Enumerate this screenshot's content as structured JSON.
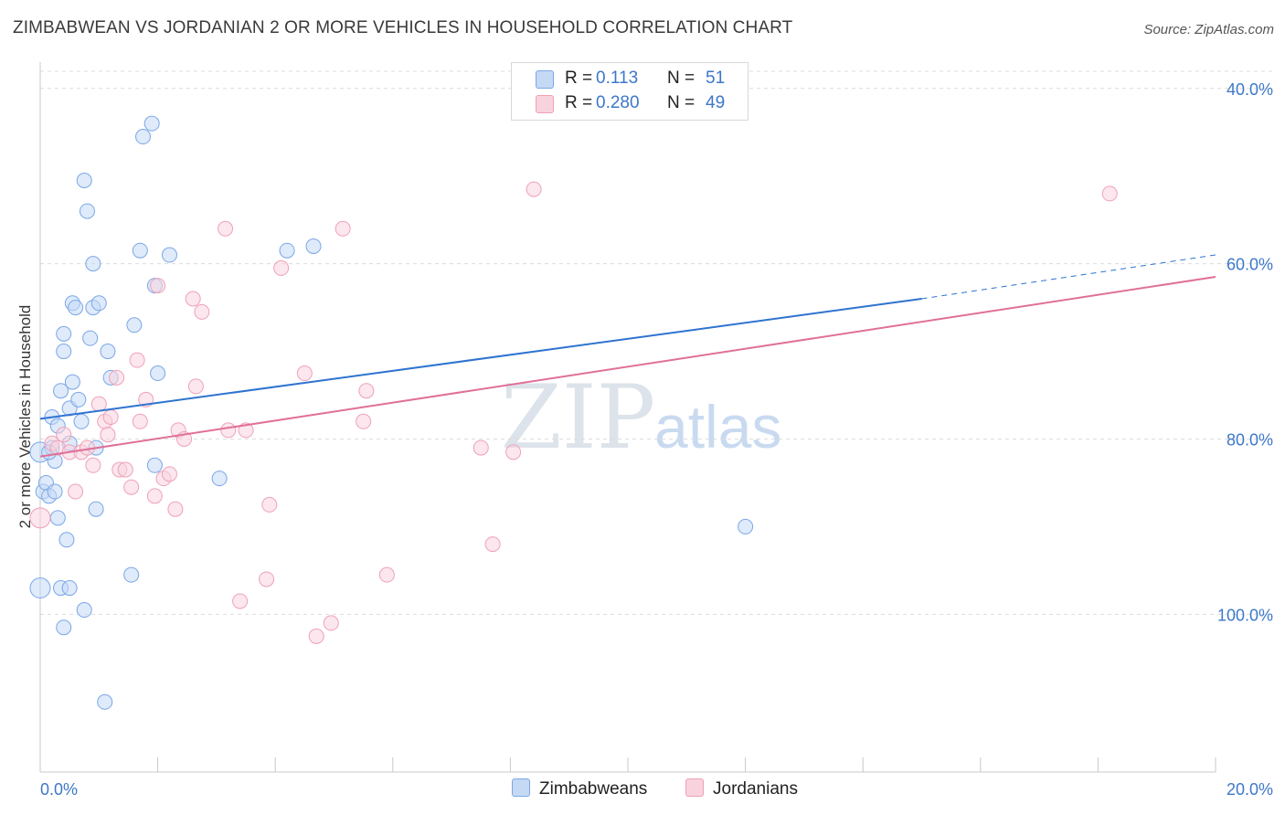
{
  "header": {
    "title": "ZIMBABWEAN VS JORDANIAN 2 OR MORE VEHICLES IN HOUSEHOLD CORRELATION CHART",
    "source": "Source: ZipAtlas.com"
  },
  "watermark": {
    "zip": "ZIP",
    "atlas": "atlas"
  },
  "legend": {
    "r_label": "R =",
    "n_label": "N =",
    "rows": [
      {
        "r": "0.113",
        "n": "51",
        "color": "#7aa7e6"
      },
      {
        "r": "0.280",
        "n": "49",
        "color": "#f0a0b8"
      }
    ]
  },
  "bottom_legend": {
    "series1": "Zimbabweans",
    "series2": "Jordanians"
  },
  "axis_text": {
    "ylabel": "2 or more Vehicles in Household",
    "x_left": "0.0%",
    "x_right": "20.0%",
    "y_ticks": [
      "100.0%",
      "80.0%",
      "60.0%",
      "40.0%"
    ]
  },
  "colors": {
    "blue_fill": "#c5d9f5",
    "blue_stroke": "#7aa7e6",
    "blue_line": "#2f73d0",
    "pink_fill": "#f8d3de",
    "pink_stroke": "#f0a0b8",
    "pink_line": "#e07097",
    "tick_text": "#3d77c9"
  },
  "chart_data": {
    "type": "scatter",
    "title": "ZIMBABWEAN VS JORDANIAN 2 OR MORE VEHICLES IN HOUSEHOLD CORRELATION CHART",
    "xlabel": "",
    "ylabel": "2 or more Vehicles in Household",
    "xlim": [
      0,
      20
    ],
    "ylim": [
      22,
      103
    ],
    "y_ticks": [
      40,
      60,
      80,
      100
    ],
    "grid": "horizontal dashed",
    "legend_position": "top-center",
    "series": [
      {
        "name": "Zimbabweans",
        "r": 0.113,
        "n": 51,
        "trend": {
          "x0": 0,
          "y0": 62.3,
          "x1": 15,
          "y1": 76.0,
          "dashed_to_x": 20,
          "dashed_y": 81.0
        },
        "points": [
          [
            0.0,
            43.0
          ],
          [
            0.0,
            58.5
          ],
          [
            0.05,
            54.0
          ],
          [
            0.1,
            55.0
          ],
          [
            0.15,
            53.5
          ],
          [
            0.2,
            59.0
          ],
          [
            0.2,
            62.5
          ],
          [
            0.25,
            57.5
          ],
          [
            0.3,
            61.5
          ],
          [
            0.3,
            51.0
          ],
          [
            0.35,
            65.5
          ],
          [
            0.35,
            43.0
          ],
          [
            0.4,
            72.0
          ],
          [
            0.4,
            70.0
          ],
          [
            0.4,
            38.5
          ],
          [
            0.45,
            48.5
          ],
          [
            0.5,
            43.0
          ],
          [
            0.5,
            63.5
          ],
          [
            0.55,
            75.5
          ],
          [
            0.55,
            66.5
          ],
          [
            0.6,
            75.0
          ],
          [
            0.65,
            64.5
          ],
          [
            0.7,
            62.0
          ],
          [
            0.75,
            89.5
          ],
          [
            0.75,
            40.5
          ],
          [
            0.8,
            86.0
          ],
          [
            0.85,
            71.5
          ],
          [
            0.9,
            80.0
          ],
          [
            0.9,
            75.0
          ],
          [
            0.95,
            52.0
          ],
          [
            0.95,
            59.0
          ],
          [
            1.0,
            75.5
          ],
          [
            1.1,
            30.0
          ],
          [
            1.15,
            70.0
          ],
          [
            1.2,
            67.0
          ],
          [
            1.55,
            44.5
          ],
          [
            1.6,
            73.0
          ],
          [
            1.7,
            81.5
          ],
          [
            1.75,
            94.5
          ],
          [
            1.9,
            96.0
          ],
          [
            1.95,
            57.0
          ],
          [
            1.95,
            77.5
          ],
          [
            2.0,
            67.5
          ],
          [
            2.2,
            81.0
          ],
          [
            3.05,
            55.5
          ],
          [
            4.2,
            81.5
          ],
          [
            4.65,
            82.0
          ],
          [
            12.0,
            50.0
          ],
          [
            0.15,
            58.5
          ],
          [
            0.25,
            54.0
          ],
          [
            0.5,
            59.5
          ]
        ]
      },
      {
        "name": "Jordanians",
        "r": 0.28,
        "n": 49,
        "trend": {
          "x0": 0,
          "y0": 58.0,
          "x1": 20,
          "y1": 78.5
        },
        "points": [
          [
            0.0,
            51.0
          ],
          [
            0.2,
            59.5
          ],
          [
            0.3,
            59.0
          ],
          [
            0.4,
            60.5
          ],
          [
            0.5,
            58.5
          ],
          [
            0.6,
            54.0
          ],
          [
            0.7,
            58.5
          ],
          [
            0.8,
            59.0
          ],
          [
            0.9,
            57.0
          ],
          [
            1.0,
            64.0
          ],
          [
            1.1,
            62.0
          ],
          [
            1.2,
            62.5
          ],
          [
            1.3,
            67.0
          ],
          [
            1.35,
            56.5
          ],
          [
            1.45,
            56.5
          ],
          [
            1.55,
            54.5
          ],
          [
            1.65,
            69.0
          ],
          [
            1.7,
            62.0
          ],
          [
            1.8,
            64.5
          ],
          [
            1.95,
            53.5
          ],
          [
            2.0,
            77.5
          ],
          [
            2.1,
            55.5
          ],
          [
            2.2,
            56.0
          ],
          [
            2.3,
            52.0
          ],
          [
            2.35,
            61.0
          ],
          [
            2.45,
            60.0
          ],
          [
            2.6,
            76.0
          ],
          [
            2.65,
            66.0
          ],
          [
            2.75,
            74.5
          ],
          [
            3.15,
            84.0
          ],
          [
            3.2,
            61.0
          ],
          [
            3.4,
            41.5
          ],
          [
            3.5,
            61.0
          ],
          [
            3.85,
            44.0
          ],
          [
            3.9,
            52.5
          ],
          [
            4.1,
            79.5
          ],
          [
            4.5,
            67.5
          ],
          [
            4.7,
            37.5
          ],
          [
            4.95,
            39.0
          ],
          [
            5.15,
            84.0
          ],
          [
            5.5,
            62.0
          ],
          [
            5.55,
            65.5
          ],
          [
            5.9,
            44.5
          ],
          [
            7.5,
            59.0
          ],
          [
            7.7,
            48.0
          ],
          [
            8.05,
            58.5
          ],
          [
            8.4,
            88.5
          ],
          [
            18.2,
            88.0
          ],
          [
            1.15,
            60.5
          ]
        ]
      }
    ]
  }
}
